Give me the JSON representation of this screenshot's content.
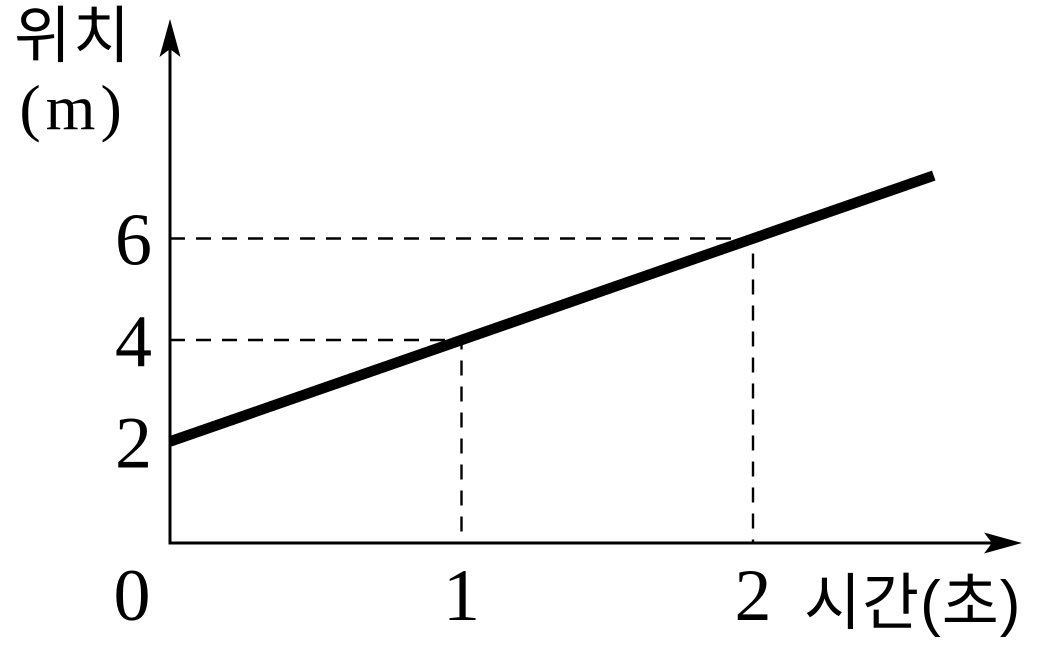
{
  "figure": {
    "ylabel_line1": "위치",
    "ylabel_line2": "(m)",
    "xlabel": "시간(초)"
  },
  "colors": {
    "ink": "#000000",
    "background": "#ffffff"
  },
  "chart_data": {
    "type": "line",
    "title": "",
    "xlabel": "시간(초)",
    "ylabel": "위치 (m)",
    "x_ticks": [
      0,
      1,
      2
    ],
    "x_tick_labels": [
      "0",
      "1",
      "2"
    ],
    "y_ticks": [
      2,
      4,
      6
    ],
    "y_tick_labels": [
      "2",
      "4",
      "6"
    ],
    "xlim": [
      0,
      2.87
    ],
    "ylim": [
      0,
      10.2
    ],
    "grid": false,
    "legend": "none",
    "series": [
      {
        "name": "position-line",
        "description": "position(m) = 2 + 2 * time(s); straight line, y-intercept 2",
        "points": [
          [
            0,
            2
          ],
          [
            2.62,
            7.24
          ]
        ]
      }
    ],
    "marked_points": [
      [
        1,
        4
      ],
      [
        2,
        6
      ]
    ],
    "guides": [
      {
        "x": 1,
        "y": 4
      },
      {
        "x": 2,
        "y": 6
      }
    ]
  }
}
